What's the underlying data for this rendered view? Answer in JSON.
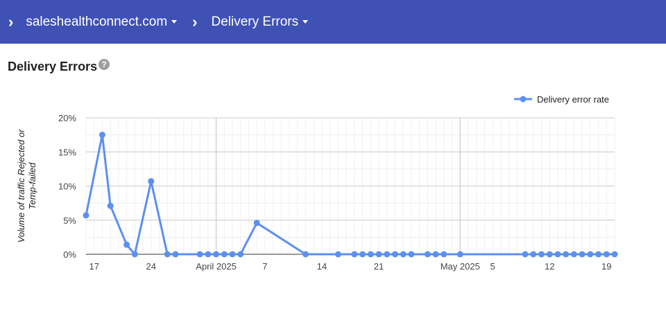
{
  "breadcrumb": {
    "separator": "›",
    "domain": "saleshealthconnect.com",
    "page": "Delivery Errors"
  },
  "section": {
    "title": "Delivery Errors",
    "help": "?"
  },
  "colors": {
    "topbar": "#3f51b5",
    "series": "#5b8ff0"
  },
  "chart_data": {
    "type": "line",
    "ylabel": "Volume of traffic Rejected or Temp-failed",
    "ylabel_lines": [
      "Volume of traffic Rejected or",
      "Temp-failed"
    ],
    "ylim": [
      0,
      20
    ],
    "yticks": [
      0,
      5,
      10,
      15,
      20
    ],
    "ytick_labels": [
      "0%",
      "5%",
      "10%",
      "15%",
      "20%"
    ],
    "grid": true,
    "legend": "top-right",
    "xrange": [
      "2025-03-16",
      "2025-05-20"
    ],
    "xticks": [
      {
        "date": "2025-03-17",
        "label": "17"
      },
      {
        "date": "2025-03-24",
        "label": "24"
      },
      {
        "date": "2025-04-01",
        "label": "April 2025"
      },
      {
        "date": "2025-04-07",
        "label": "7"
      },
      {
        "date": "2025-04-14",
        "label": "14"
      },
      {
        "date": "2025-04-21",
        "label": "21"
      },
      {
        "date": "2025-05-01",
        "label": "May 2025"
      },
      {
        "date": "2025-05-05",
        "label": "5"
      },
      {
        "date": "2025-05-12",
        "label": "12"
      },
      {
        "date": "2025-05-19",
        "label": "19"
      }
    ],
    "series": [
      {
        "name": "Delivery error rate",
        "points": [
          [
            "2025-03-16",
            5.7
          ],
          [
            "2025-03-18",
            17.5
          ],
          [
            "2025-03-19",
            7.1
          ],
          [
            "2025-03-21",
            1.4
          ],
          [
            "2025-03-22",
            0
          ],
          [
            "2025-03-24",
            10.7
          ],
          [
            "2025-03-26",
            0
          ],
          [
            "2025-03-27",
            0
          ],
          [
            "2025-03-30",
            0
          ],
          [
            "2025-03-31",
            0
          ],
          [
            "2025-04-01",
            0
          ],
          [
            "2025-04-02",
            0
          ],
          [
            "2025-04-03",
            0
          ],
          [
            "2025-04-04",
            0
          ],
          [
            "2025-04-06",
            4.6
          ],
          [
            "2025-04-12",
            0
          ],
          [
            "2025-04-16",
            0
          ],
          [
            "2025-04-18",
            0
          ],
          [
            "2025-04-19",
            0
          ],
          [
            "2025-04-20",
            0
          ],
          [
            "2025-04-21",
            0
          ],
          [
            "2025-04-22",
            0
          ],
          [
            "2025-04-23",
            0
          ],
          [
            "2025-04-24",
            0
          ],
          [
            "2025-04-25",
            0
          ],
          [
            "2025-04-27",
            0
          ],
          [
            "2025-04-28",
            0
          ],
          [
            "2025-04-29",
            0
          ],
          [
            "2025-05-01",
            0
          ],
          [
            "2025-05-09",
            0
          ],
          [
            "2025-05-10",
            0
          ],
          [
            "2025-05-11",
            0
          ],
          [
            "2025-05-12",
            0
          ],
          [
            "2025-05-13",
            0
          ],
          [
            "2025-05-14",
            0
          ],
          [
            "2025-05-15",
            0
          ],
          [
            "2025-05-16",
            0
          ],
          [
            "2025-05-17",
            0
          ],
          [
            "2025-05-18",
            0
          ],
          [
            "2025-05-19",
            0
          ],
          [
            "2025-05-20",
            0
          ]
        ]
      }
    ]
  }
}
